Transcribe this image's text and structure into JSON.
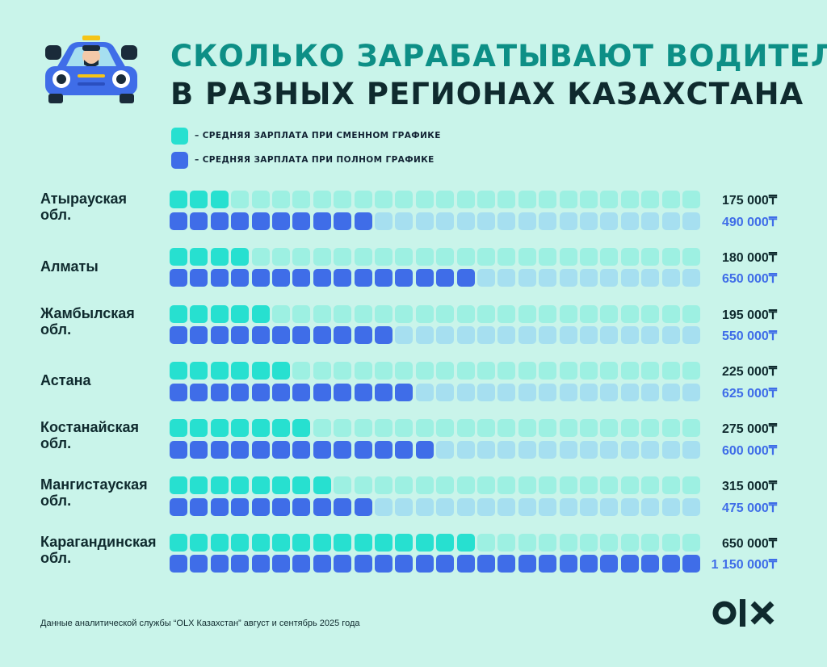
{
  "header": {
    "title_line_1": "СКОЛЬКО ЗАРАБАТЫВАЮТ ВОДИТЕЛИ",
    "title_line_2": "В РАЗНЫХ РЕГИОНАХ КАЗАХСТАНА"
  },
  "legend": {
    "shift": "– СРЕДНЯЯ ЗАРПЛАТА ПРИ СМЕННОМ ГРАФИКЕ",
    "full": "– СРЕДНЯЯ ЗАРПЛАТА ПРИ ПОЛНОМ ГРАФИКЕ"
  },
  "colors": {
    "background": "#c9f4ea",
    "shift_filled": "#27e0d0",
    "shift_empty": "#9df0e2",
    "full_filled": "#3f6de8",
    "full_empty": "#a6dff0",
    "accent": "#0d8f86"
  },
  "chart_data": {
    "type": "bar",
    "unit": "₸",
    "cells_per_row": 26,
    "value_per_cell": 25000,
    "categories": [
      "Атырауская обл.",
      "Алматы",
      "Жамбылская обл.",
      "Астана",
      "Костанайская обл.",
      "Мангистауская обл.",
      "Карагандинская обл."
    ],
    "category_lines": [
      [
        "Атырауская",
        "обл."
      ],
      [
        "Алматы"
      ],
      [
        "Жамбылская",
        "обл."
      ],
      [
        "Астана"
      ],
      [
        "Костанайская",
        "обл."
      ],
      [
        "Мангистауская",
        "обл."
      ],
      [
        "Карагандинская",
        "обл."
      ]
    ],
    "series": [
      {
        "name": "– СРЕДНЯЯ ЗАРПЛАТА ПРИ СМЕННОМ ГРАФИКЕ",
        "values": [
          175000,
          180000,
          195000,
          225000,
          275000,
          315000,
          650000
        ],
        "labels": [
          "175 000₸",
          "180 000₸",
          "195 000₸",
          "225 000₸",
          "275 000₸",
          "315 000₸",
          "650 000₸"
        ],
        "filled_cells": [
          3,
          4,
          5,
          6,
          7,
          8,
          15
        ]
      },
      {
        "name": "– СРЕДНЯЯ ЗАРПЛАТА ПРИ ПОЛНОМ ГРАФИКЕ",
        "values": [
          490000,
          650000,
          550000,
          625000,
          600000,
          475000,
          1150000
        ],
        "labels": [
          "490 000₸",
          "650 000₸",
          "550 000₸",
          "625 000₸",
          "600 000₸",
          "475 000₸",
          "1 150 000₸"
        ],
        "filled_cells": [
          10,
          15,
          11,
          12,
          13,
          10,
          26
        ]
      }
    ]
  },
  "footer": {
    "source": "Данные аналитической службы “OLX Казахстан” август и сентябрь 2025 года",
    "logo_text": "OLX"
  }
}
